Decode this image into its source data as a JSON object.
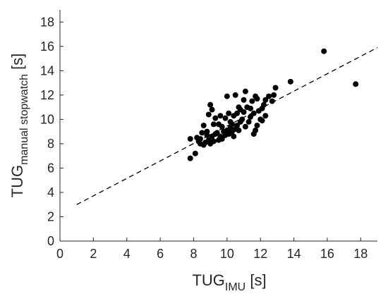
{
  "chart_data": {
    "type": "scatter",
    "title": "",
    "xlabel": {
      "main": "TUG",
      "sub": "IMU",
      "suffix": " [s]"
    },
    "ylabel": {
      "main": "TUG",
      "sub": "manual stopwatch",
      "suffix": " [s]"
    },
    "xlim": [
      0,
      19
    ],
    "ylim": [
      0,
      19
    ],
    "xticks": [
      0,
      2,
      4,
      6,
      8,
      10,
      12,
      14,
      16,
      18
    ],
    "yticks": [
      0,
      2,
      4,
      6,
      8,
      10,
      12,
      14,
      16,
      18
    ],
    "grid": false,
    "box": "left-bottom",
    "marker_color": "#000000",
    "line_color": "#000000",
    "fit_line": {
      "style": "dashed",
      "x": [
        1,
        19
      ],
      "y": [
        3.0,
        15.9
      ]
    },
    "points": [
      [
        7.8,
        6.8
      ],
      [
        8.1,
        7.2
      ],
      [
        7.8,
        8.4
      ],
      [
        8.2,
        8.5
      ],
      [
        8.4,
        8.4
      ],
      [
        8.3,
        8.2
      ],
      [
        8.5,
        8.9
      ],
      [
        8.6,
        7.9
      ],
      [
        8.7,
        8.1
      ],
      [
        8.9,
        8.3
      ],
      [
        8.8,
        8.7
      ],
      [
        9.0,
        8.0
      ],
      [
        9.1,
        8.6
      ],
      [
        9.2,
        8.2
      ],
      [
        9.3,
        8.8
      ],
      [
        9.5,
        8.3
      ],
      [
        9.4,
        8.9
      ],
      [
        9.6,
        8.6
      ],
      [
        9.7,
        8.4
      ],
      [
        9.8,
        9.0
      ],
      [
        9.9,
        8.7
      ],
      [
        10.0,
        9.1
      ],
      [
        10.1,
        8.8
      ],
      [
        10.2,
        9.3
      ],
      [
        10.3,
        9.0
      ],
      [
        10.4,
        8.6
      ],
      [
        10.5,
        9.2
      ],
      [
        10.6,
        9.5
      ],
      [
        10.7,
        9.1
      ],
      [
        10.8,
        9.8
      ],
      [
        10.2,
        9.8
      ],
      [
        10.4,
        10.3
      ],
      [
        10.6,
        10.5
      ],
      [
        10.8,
        10.8
      ],
      [
        11.0,
        10.6
      ],
      [
        11.2,
        11.0
      ],
      [
        11.4,
        10.2
      ],
      [
        11.3,
        9.8
      ],
      [
        11.1,
        9.4
      ],
      [
        10.9,
        10.0
      ],
      [
        11.5,
        11.5
      ],
      [
        11.7,
        11.9
      ],
      [
        11.8,
        11.7
      ],
      [
        11.6,
        10.5
      ],
      [
        11.9,
        10.7
      ],
      [
        12.1,
        10.9
      ],
      [
        12.3,
        11.6
      ],
      [
        12.5,
        11.9
      ],
      [
        12.2,
        11.2
      ],
      [
        12.0,
        10.0
      ],
      [
        11.8,
        9.5
      ],
      [
        11.7,
        9.1
      ],
      [
        11.6,
        8.8
      ],
      [
        12.1,
        9.9
      ],
      [
        12.3,
        10.3
      ],
      [
        12.8,
        12.0
      ],
      [
        12.9,
        12.6
      ],
      [
        12.7,
        11.5
      ],
      [
        8.9,
        10.4
      ],
      [
        9.0,
        11.2
      ],
      [
        9.1,
        10.8
      ],
      [
        9.3,
        10.1
      ],
      [
        9.5,
        9.6
      ],
      [
        9.7,
        9.4
      ],
      [
        9.9,
        10.1
      ],
      [
        10.0,
        11.9
      ],
      [
        10.5,
        12.0
      ],
      [
        11.1,
        12.3
      ],
      [
        11.0,
        11.6
      ],
      [
        10.7,
        11.0
      ],
      [
        8.6,
        9.5
      ],
      [
        8.8,
        9.0
      ],
      [
        9.2,
        9.6
      ],
      [
        8.4,
        8.0
      ],
      [
        10.3,
        9.6
      ],
      [
        9.6,
        10.3
      ],
      [
        10.1,
        10.5
      ],
      [
        11.4,
        10.9
      ],
      [
        13.8,
        13.1
      ],
      [
        15.8,
        15.6
      ],
      [
        17.7,
        12.9
      ]
    ]
  }
}
